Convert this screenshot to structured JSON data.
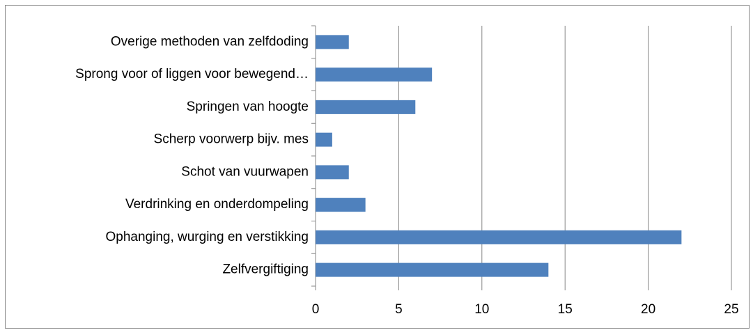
{
  "chart_data": {
    "type": "bar",
    "orientation": "horizontal",
    "categories": [
      "Overige methoden van zelfdoding",
      "Sprong voor of liggen voor bewegend…",
      "Springen van hoogte",
      "Scherp voorwerp bijv. mes",
      "Schot van vuurwapen",
      "Verdrinking en onderdompeling",
      "Ophanging, wurging en verstikking",
      "Zelfvergiftiging"
    ],
    "values": [
      2,
      7,
      6,
      1,
      2,
      3,
      22,
      14
    ],
    "color": "#4f81bd",
    "xlim": [
      0,
      25
    ],
    "xticks": [
      0,
      5,
      10,
      15,
      20,
      25
    ],
    "grid": true
  }
}
